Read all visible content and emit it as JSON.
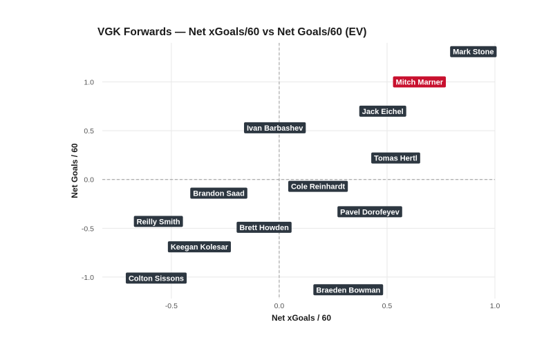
{
  "chart_data": {
    "type": "scatter",
    "title": "VGK Forwards — Net xGoals/60 vs Net Goals/60 (EV)",
    "xlabel": "Net xGoals / 60",
    "ylabel": "Net Goals / 60",
    "xlim": [
      -0.82,
      1.0
    ],
    "ylim": [
      -1.22,
      1.4
    ],
    "x_ticks": [
      -0.5,
      0.0,
      0.5,
      1.0
    ],
    "x_tick_labels": [
      "-0.5",
      "0.0",
      "0.5",
      "1.0"
    ],
    "y_ticks": [
      -1.0,
      -0.5,
      0.0,
      0.5,
      1.0
    ],
    "y_tick_labels": [
      "-1.0",
      "-0.5",
      "0.0",
      "0.5",
      "1.0"
    ],
    "grid": true,
    "reference_lines": {
      "x": 0.0,
      "y": 0.0,
      "style": "dashed"
    },
    "colors": {
      "default_label": "#2d3741",
      "highlight_label": "#c8102e"
    },
    "points": [
      {
        "name": "Mark Stone",
        "x": 0.9,
        "y": 1.31,
        "highlight": false
      },
      {
        "name": "Mitch Marner",
        "x": 0.65,
        "y": 1.0,
        "highlight": true
      },
      {
        "name": "Jack Eichel",
        "x": 0.48,
        "y": 0.7,
        "highlight": false
      },
      {
        "name": "Ivan Barbashev",
        "x": -0.02,
        "y": 0.53,
        "highlight": false
      },
      {
        "name": "Tomas Hertl",
        "x": 0.54,
        "y": 0.22,
        "highlight": false
      },
      {
        "name": "Cole Reinhardt",
        "x": 0.18,
        "y": -0.07,
        "highlight": false
      },
      {
        "name": "Brandon Saad",
        "x": -0.28,
        "y": -0.14,
        "highlight": false
      },
      {
        "name": "Pavel Dorofeyev",
        "x": 0.42,
        "y": -0.33,
        "highlight": false
      },
      {
        "name": "Reilly Smith",
        "x": -0.56,
        "y": -0.43,
        "highlight": false
      },
      {
        "name": "Brett Howden",
        "x": -0.07,
        "y": -0.49,
        "highlight": false
      },
      {
        "name": "Keegan Kolesar",
        "x": -0.37,
        "y": -0.69,
        "highlight": false
      },
      {
        "name": "Colton Sissons",
        "x": -0.57,
        "y": -1.01,
        "highlight": false
      },
      {
        "name": "Braeden Bowman",
        "x": 0.32,
        "y": -1.13,
        "highlight": false
      }
    ]
  }
}
